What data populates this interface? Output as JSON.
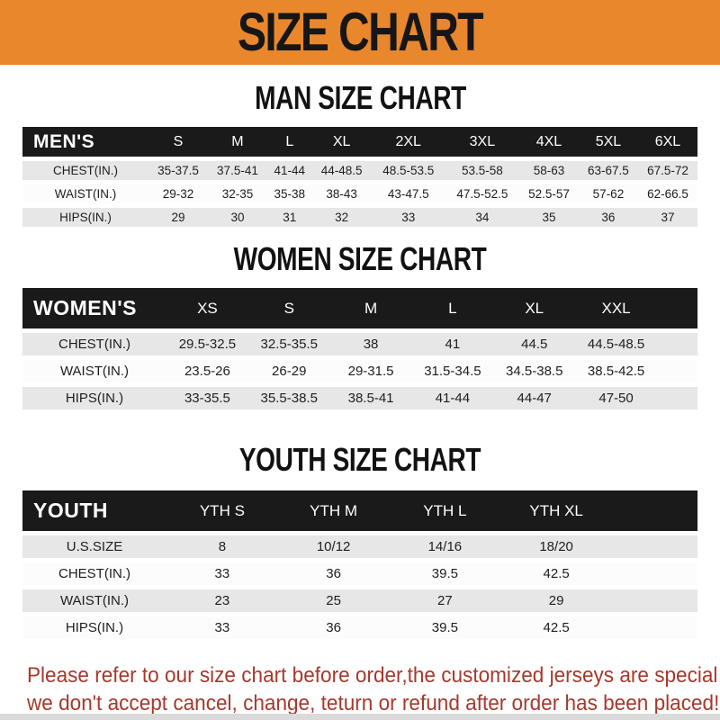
{
  "banner": {
    "title": "SIZE CHART"
  },
  "sections": [
    {
      "heading": "MAN SIZE CHART",
      "corner_label": "MEN'S",
      "columns": [
        "S",
        "M",
        "L",
        "XL",
        "2XL",
        "3XL",
        "4XL",
        "5XL",
        "6XL"
      ],
      "rows": [
        {
          "label": "CHEST(IN.)",
          "values": [
            "35-37.5",
            "37.5-41",
            "41-44",
            "44-48.5",
            "48.5-53.5",
            "53.5-58",
            "58-63",
            "63-67.5",
            "67.5-72"
          ]
        },
        {
          "label": "WAIST(IN.)",
          "values": [
            "29-32",
            "32-35",
            "35-38",
            "38-43",
            "43-47.5",
            "47.5-52.5",
            "52.5-57",
            "57-62",
            "62-66.5"
          ]
        },
        {
          "label": "HIPS(IN.)",
          "values": [
            "29",
            "30",
            "31",
            "32",
            "33",
            "34",
            "35",
            "36",
            "37"
          ]
        }
      ]
    },
    {
      "heading": "WOMEN SIZE CHART",
      "corner_label": "WOMEN'S",
      "columns": [
        "XS",
        "S",
        "M",
        "L",
        "XL",
        "XXL"
      ],
      "rows": [
        {
          "label": "CHEST(IN.)",
          "values": [
            "29.5-32.5",
            "32.5-35.5",
            "38",
            "41",
            "44.5",
            "44.5-48.5"
          ]
        },
        {
          "label": "WAIST(IN.)",
          "values": [
            "23.5-26",
            "26-29",
            "29-31.5",
            "31.5-34.5",
            "34.5-38.5",
            "38.5-42.5"
          ]
        },
        {
          "label": "HIPS(IN.)",
          "values": [
            "33-35.5",
            "35.5-38.5",
            "38.5-41",
            "41-44",
            "44-47",
            "47-50"
          ]
        }
      ]
    },
    {
      "heading": "YOUTH SIZE CHART",
      "corner_label": "YOUTH",
      "columns": [
        "YTH S",
        "YTH M",
        "YTH L",
        "YTH XL"
      ],
      "rows": [
        {
          "label": "U.S.SIZE",
          "values": [
            "8",
            "10/12",
            "14/16",
            "18/20"
          ]
        },
        {
          "label": "CHEST(IN.)",
          "values": [
            "33",
            "36",
            "39.5",
            "42.5"
          ]
        },
        {
          "label": "WAIST(IN.)",
          "values": [
            "23",
            "25",
            "27",
            "29"
          ]
        },
        {
          "label": "HIPS(IN.)",
          "values": [
            "33",
            "36",
            "39.5",
            "42.5"
          ]
        }
      ]
    }
  ],
  "footer": {
    "line1": "Please refer to our size chart before order,the customized jerseys are special products,",
    "line2": "we don't accept cancel, change, teturn or refund after order has been placed!"
  },
  "colors": {
    "banner_orange": "#e8872c",
    "header_black": "#1a1a1a",
    "row_gray": "#e7e7e7",
    "footer_red": "#a6392c"
  }
}
